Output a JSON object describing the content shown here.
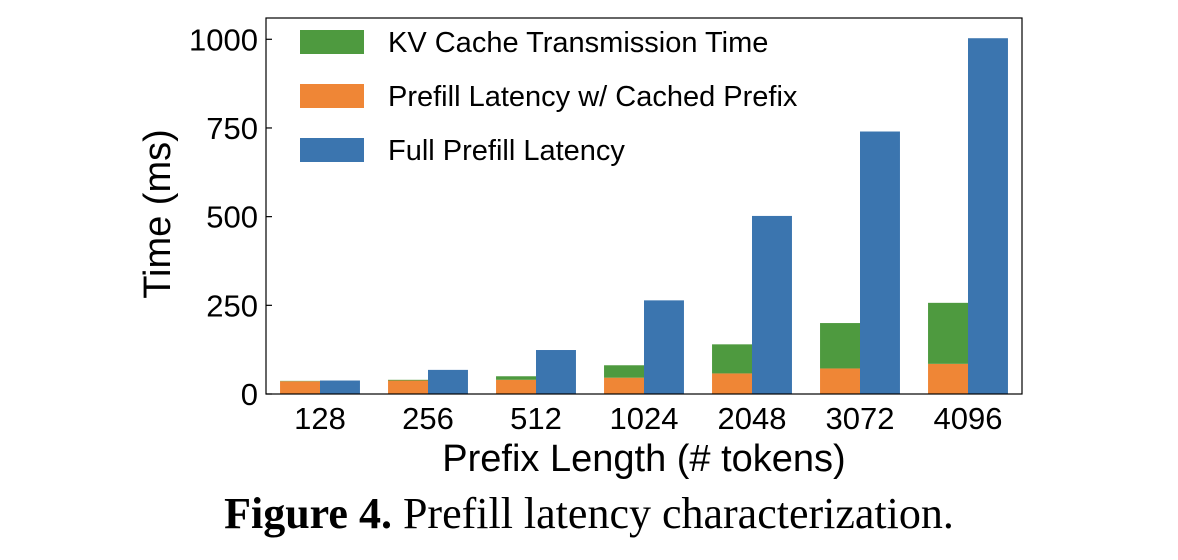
{
  "chart_data": {
    "type": "bar",
    "xlabel": "Prefix Length (# tokens)",
    "ylabel": "Time (ms)",
    "ylim": [
      0,
      1060
    ],
    "yticks": [
      0,
      250,
      500,
      750,
      1000
    ],
    "categories": [
      "128",
      "256",
      "512",
      "1024",
      "2048",
      "3072",
      "4096"
    ],
    "legend_position": "top-left",
    "series": [
      {
        "name": "KV Cache Transmission Time",
        "color": "#4e9a3f",
        "stacked_on": "Prefill Latency w/ Cached Prefix",
        "values": [
          1,
          2,
          10,
          35,
          82,
          128,
          172
        ]
      },
      {
        "name": "Prefill Latency w/ Cached Prefix",
        "color": "#ef8636",
        "values": [
          36,
          38,
          40,
          46,
          58,
          72,
          85
        ]
      },
      {
        "name": "Full Prefill Latency",
        "color": "#3b75af",
        "values": [
          38,
          68,
          124,
          264,
          502,
          740,
          1003
        ]
      }
    ]
  },
  "caption": {
    "label": "Figure 4.",
    "text": " Prefill latency characterization."
  }
}
